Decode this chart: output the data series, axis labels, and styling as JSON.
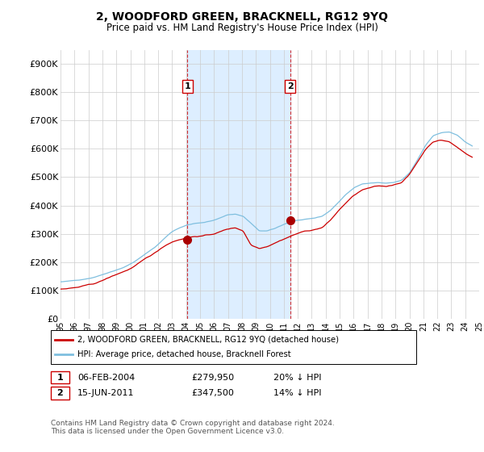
{
  "title": "2, WOODFORD GREEN, BRACKNELL, RG12 9YQ",
  "subtitle": "Price paid vs. HM Land Registry's House Price Index (HPI)",
  "legend_line1": "2, WOODFORD GREEN, BRACKNELL, RG12 9YQ (detached house)",
  "legend_line2": "HPI: Average price, detached house, Bracknell Forest",
  "footer": "Contains HM Land Registry data © Crown copyright and database right 2024.\nThis data is licensed under the Open Government Licence v3.0.",
  "sale1_label": "1",
  "sale1_date": "06-FEB-2004",
  "sale1_price": "£279,950",
  "sale1_hpi": "20% ↓ HPI",
  "sale1_year": 2004.09,
  "sale1_value": 279950,
  "sale2_label": "2",
  "sale2_date": "15-JUN-2011",
  "sale2_price": "£347,500",
  "sale2_hpi": "14% ↓ HPI",
  "sale2_year": 2011.46,
  "sale2_value": 347500,
  "hpi_color": "#7fbfdf",
  "price_color": "#cc0000",
  "marker_color": "#aa0000",
  "vline_color": "#cc0000",
  "shade_color": "#ddeeff",
  "background_color": "#ffffff",
  "grid_color": "#cccccc",
  "ylim": [
    0,
    950000
  ],
  "xlim_start": 1995.0,
  "xlim_end": 2025.0,
  "yticks": [
    0,
    100000,
    200000,
    300000,
    400000,
    500000,
    600000,
    700000,
    800000,
    900000
  ],
  "ytick_labels": [
    "£0",
    "£100K",
    "£200K",
    "£300K",
    "£400K",
    "£500K",
    "£600K",
    "£700K",
    "£800K",
    "£900K"
  ]
}
